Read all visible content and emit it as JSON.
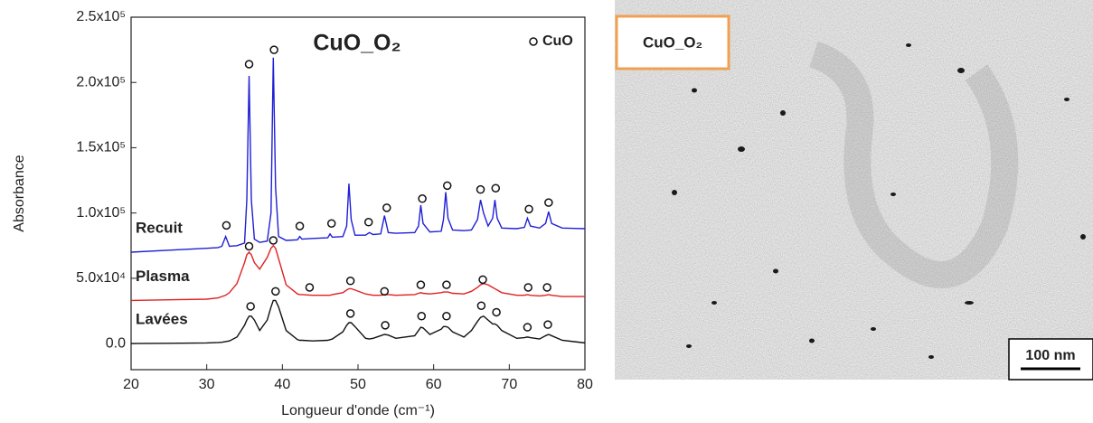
{
  "chart_data": {
    "type": "line",
    "title": "CuO_O₂",
    "xlabel": "Longueur d'onde (cm⁻¹)",
    "ylabel": "Absorbance",
    "xlim": [
      20,
      80
    ],
    "xticks": [
      20,
      30,
      40,
      50,
      60,
      70,
      80
    ],
    "ylim": [
      -20000,
      250000
    ],
    "yticks": [
      {
        "value": 0,
        "label": "0.0"
      },
      {
        "value": 50000,
        "label": "5.0x10⁴"
      },
      {
        "value": 100000,
        "label": "1.0x10⁵"
      },
      {
        "value": 150000,
        "label": "1.5x10⁵"
      },
      {
        "value": 200000,
        "label": "2.0x10⁵"
      },
      {
        "value": 250000,
        "label": "2.5x10⁵"
      }
    ],
    "grid": false,
    "x": [
      20,
      25,
      30,
      31.5,
      32,
      32.5,
      33,
      34,
      35,
      35.3,
      35.6,
      35.9,
      36.3,
      37,
      38,
      38.5,
      38.8,
      39.1,
      39.5,
      40.5,
      42,
      42.3,
      42.6,
      44,
      46,
      46.3,
      46.6,
      48,
      48.5,
      48.8,
      49.1,
      49.6,
      51,
      51.5,
      52,
      53,
      53.5,
      54,
      55,
      57.5,
      58,
      58.3,
      58.6,
      59.5,
      61,
      61.3,
      61.6,
      61.9,
      62.5,
      64,
      65,
      65.8,
      66.2,
      66.6,
      67.2,
      67.8,
      68.1,
      68.4,
      69,
      71,
      72,
      72.4,
      72.8,
      74,
      74.8,
      75.2,
      75.6,
      77,
      80
    ],
    "series": [
      {
        "name": "Recuit",
        "color": "#1f1fd6",
        "values": [
          70000,
          71500,
          73000,
          73500,
          74500,
          82000,
          74500,
          75000,
          77000,
          110000,
          205000,
          110000,
          80000,
          77500,
          78500,
          100000,
          219000,
          120000,
          82000,
          79000,
          79500,
          82000,
          80000,
          80500,
          81000,
          84000,
          81500,
          82000,
          90000,
          122500,
          95000,
          83000,
          83000,
          85000,
          83500,
          84000,
          98000,
          85000,
          84500,
          85000,
          90000,
          106000,
          92000,
          85500,
          86000,
          95000,
          116000,
          96000,
          87000,
          86500,
          87000,
          95000,
          110000,
          100000,
          90000,
          96000,
          110000,
          96000,
          88500,
          88000,
          89000,
          96000,
          90000,
          88500,
          92000,
          101000,
          92000,
          88500,
          88000
        ]
      },
      {
        "name": "Plasma",
        "color": "#e02020",
        "values": [
          33000,
          33500,
          34000,
          35000,
          36000,
          37000,
          39000,
          46000,
          62000,
          68000,
          70000,
          68000,
          62000,
          57000,
          66000,
          73000,
          75000,
          73000,
          65000,
          45000,
          38000,
          37500,
          37500,
          37000,
          37000,
          37000,
          37500,
          39000,
          41000,
          42000,
          42000,
          41000,
          38000,
          37500,
          37000,
          37000,
          37500,
          37500,
          37000,
          37500,
          38500,
          39000,
          38500,
          38000,
          39000,
          39500,
          39500,
          39500,
          38500,
          38000,
          40000,
          43000,
          45000,
          46000,
          45000,
          43000,
          42000,
          41000,
          39000,
          37000,
          37000,
          37500,
          37000,
          36500,
          37000,
          37500,
          37000,
          36000,
          36000
        ]
      },
      {
        "name": "Lavées",
        "color": "#111111",
        "values": [
          0,
          200,
          500,
          800,
          1000,
          1500,
          2000,
          5000,
          14000,
          18000,
          21000,
          21000,
          18000,
          10000,
          18000,
          28000,
          33000,
          33000,
          28000,
          10000,
          3000,
          2500,
          2500,
          2000,
          2500,
          3000,
          3500,
          9000,
          14000,
          16000,
          16000,
          13000,
          4000,
          3500,
          4000,
          6000,
          7000,
          6500,
          4000,
          6000,
          10000,
          12500,
          12000,
          7000,
          11000,
          13000,
          13000,
          12500,
          9000,
          5000,
          10000,
          17000,
          20000,
          21000,
          18000,
          15000,
          15000,
          14000,
          10000,
          4000,
          4500,
          5000,
          4500,
          3500,
          6000,
          7000,
          6000,
          2500,
          500
        ]
      },
      {
        "name": "CuO",
        "color": "#111111",
        "marker": "circle",
        "x": [
          32.6,
          35.6,
          38.9,
          42.3,
          46.5,
          51.4,
          53.8,
          58.5,
          61.8,
          66.2,
          68.2,
          72.6,
          75.2,
          35.6,
          38.8,
          43.6,
          49,
          53.5,
          58.3,
          61.7,
          66.5,
          72.5,
          75,
          35.8,
          39.1,
          49,
          53.6,
          58.4,
          61.7,
          66.3,
          68.3,
          72.4,
          75.1
        ],
        "values": [
          90500,
          214000,
          225000,
          90000,
          92000,
          93000,
          104000,
          111000,
          121000,
          118000,
          119000,
          103000,
          108000,
          74500,
          79000,
          43000,
          48000,
          40000,
          45000,
          45000,
          49000,
          43000,
          43000,
          28500,
          40000,
          23000,
          14000,
          21000,
          21000,
          29000,
          24000,
          12500,
          14500
        ]
      }
    ]
  },
  "image": {
    "label": "CuO_O₂",
    "scale_bar": "100 nm"
  }
}
